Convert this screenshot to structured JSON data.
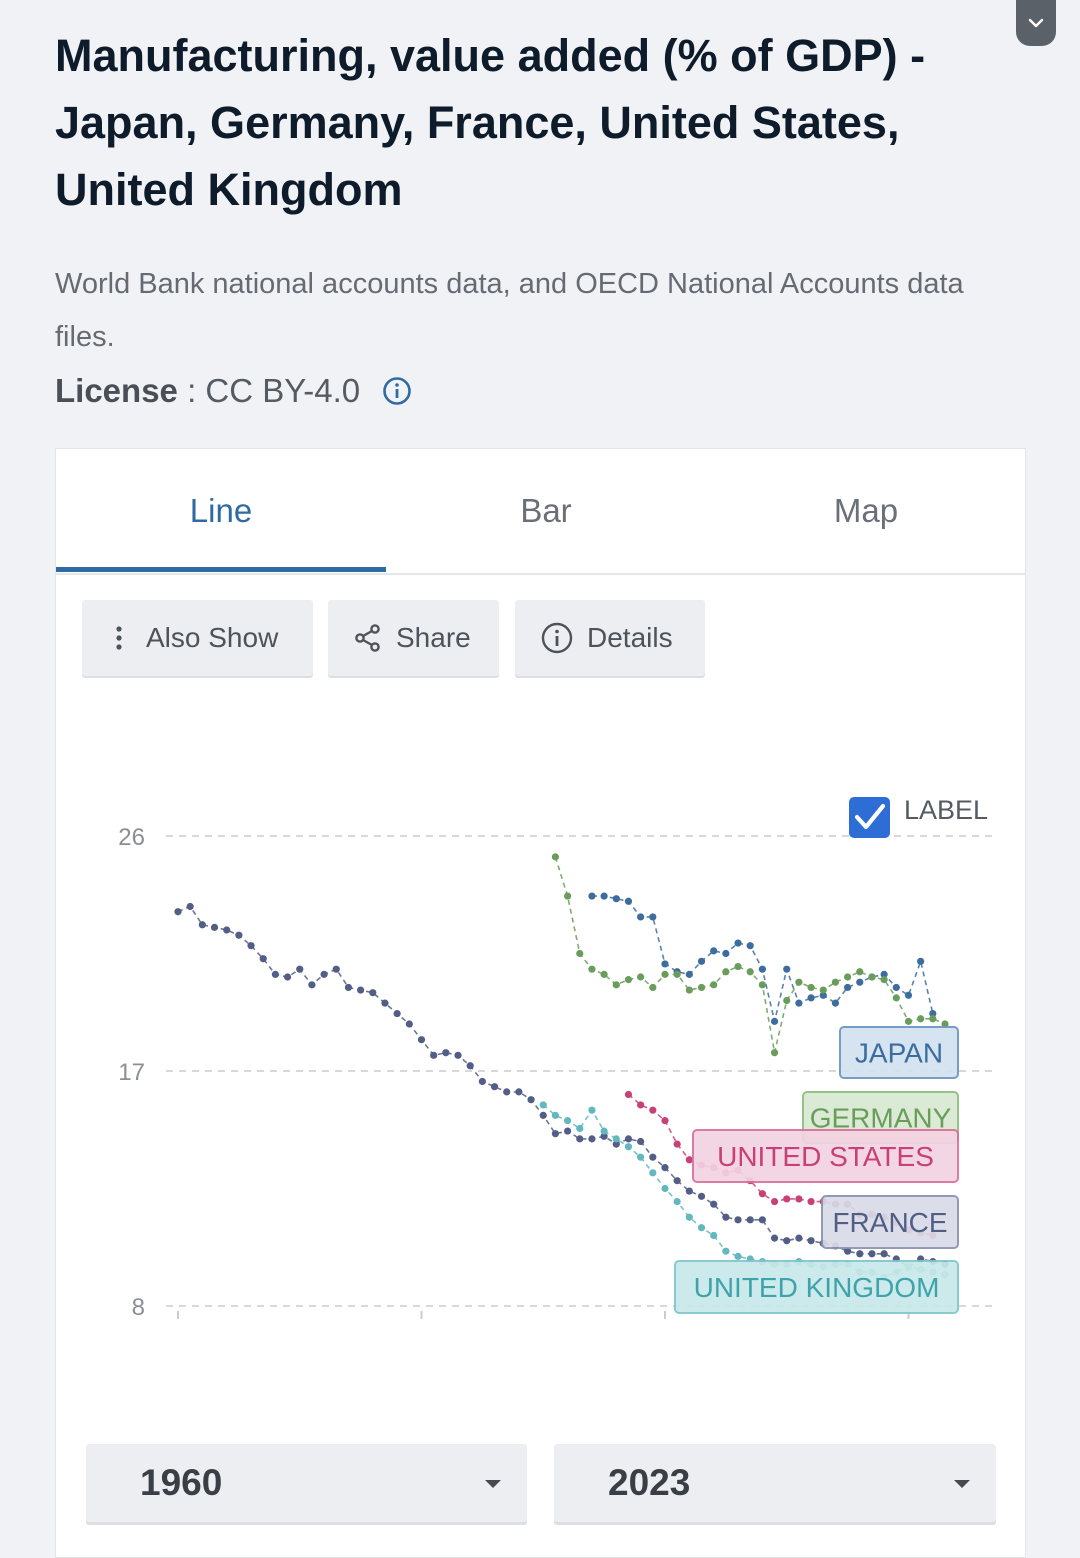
{
  "header": {
    "title": "Manufacturing, value added (% of GDP) - Japan, Germany, France, United States, United Kingdom",
    "source": "World Bank national accounts data, and OECD National Accounts data files.",
    "license_label": "License",
    "license_sep": " : ",
    "license_value": "CC BY-4.0"
  },
  "tabs": [
    {
      "label": "Line",
      "active": true
    },
    {
      "label": "Bar",
      "active": false
    },
    {
      "label": "Map",
      "active": false
    }
  ],
  "toolbar": {
    "also_show": "Also Show",
    "share": "Share",
    "details": "Details"
  },
  "label_toggle": {
    "text": "LABEL",
    "checked": true
  },
  "range": {
    "start": "1960",
    "end": "2023"
  },
  "icons": {
    "collapse": "chevron-down-icon",
    "license_info": "info-icon",
    "also_show": "vertical-dots-icon",
    "share": "share-icon",
    "details": "info-icon",
    "checkbox": "checkbox-checked-icon",
    "dropdown": "caret-down-icon"
  },
  "colors": {
    "accent": "#2f6aa3",
    "japan": "#3c6d9e",
    "germany": "#6a9d5b",
    "united_states": "#c93f78",
    "france": "#525e85",
    "united_kingdom": "#63b7be"
  },
  "chart_data": {
    "type": "line",
    "title": "",
    "xlabel": "",
    "ylabel": "",
    "xlim": [
      1960,
      2023
    ],
    "ylim": [
      8,
      26
    ],
    "yticks": [
      8,
      17,
      26
    ],
    "grid": true,
    "legend": "end-of-line labels",
    "series": [
      {
        "name": "JAPAN",
        "color": "#3c6d9e",
        "x": [
          1994,
          1995,
          1996,
          1997,
          1998,
          1999,
          2000,
          2001,
          2002,
          2003,
          2004,
          2005,
          2006,
          2007,
          2008,
          2009,
          2010,
          2011,
          2012,
          2013,
          2014,
          2015,
          2016,
          2017,
          2018,
          2019,
          2020,
          2021,
          2022
        ],
        "values": [
          23.7,
          23.7,
          23.6,
          23.5,
          22.9,
          22.9,
          21.1,
          20.8,
          20.7,
          21.2,
          21.6,
          21.5,
          21.9,
          21.8,
          20.9,
          18.9,
          20.9,
          19.6,
          19.8,
          19.9,
          19.6,
          20.2,
          20.4,
          20.6,
          20.7,
          20.2,
          19.9,
          21.2,
          19.2
        ]
      },
      {
        "name": "GERMANY",
        "color": "#6a9d5b",
        "x": [
          1991,
          1992,
          1993,
          1994,
          1995,
          1996,
          1997,
          1998,
          1999,
          2000,
          2001,
          2002,
          2003,
          2004,
          2005,
          2006,
          2007,
          2008,
          2009,
          2010,
          2011,
          2012,
          2013,
          2014,
          2015,
          2016,
          2017,
          2018,
          2019,
          2020,
          2021,
          2022,
          2023
        ],
        "values": [
          25.2,
          23.7,
          21.5,
          20.9,
          20.7,
          20.3,
          20.5,
          20.6,
          20.2,
          20.7,
          20.7,
          20.1,
          20.2,
          20.3,
          20.8,
          21.0,
          20.8,
          20.3,
          17.7,
          19.7,
          20.4,
          20.2,
          20.1,
          20.4,
          20.6,
          20.8,
          20.6,
          20.5,
          19.8,
          18.9,
          19.0,
          19.0,
          18.8
        ]
      },
      {
        "name": "UNITED STATES",
        "color": "#c93f78",
        "x": [
          1997,
          1998,
          1999,
          2000,
          2001,
          2002,
          2003,
          2004,
          2005,
          2006,
          2007,
          2008,
          2009,
          2010,
          2011,
          2012,
          2013,
          2014,
          2015,
          2016,
          2017,
          2018,
          2019,
          2020,
          2021,
          2022
        ],
        "values": [
          16.1,
          15.7,
          15.5,
          15.1,
          14.2,
          13.6,
          13.4,
          13.3,
          13.1,
          13.2,
          12.8,
          12.3,
          12.0,
          12.1,
          12.1,
          12.0,
          12.0,
          11.9,
          11.9,
          11.5,
          11.5,
          11.4,
          11.2,
          10.9,
          10.8,
          10.7
        ]
      },
      {
        "name": "FRANCE",
        "color": "#525e85",
        "x": [
          1960,
          1961,
          1962,
          1963,
          1964,
          1965,
          1966,
          1967,
          1968,
          1969,
          1970,
          1971,
          1972,
          1973,
          1974,
          1975,
          1976,
          1977,
          1978,
          1979,
          1980,
          1981,
          1982,
          1983,
          1984,
          1985,
          1986,
          1987,
          1988,
          1989,
          1990,
          1991,
          1992,
          1993,
          1994,
          1995,
          1996,
          1997,
          1998,
          1999,
          2000,
          2001,
          2002,
          2003,
          2004,
          2005,
          2006,
          2007,
          2008,
          2009,
          2010,
          2011,
          2012,
          2013,
          2014,
          2015,
          2016,
          2017,
          2018,
          2019,
          2020,
          2021,
          2022,
          2023
        ],
        "values": [
          23.1,
          23.3,
          22.6,
          22.5,
          22.4,
          22.2,
          21.8,
          21.3,
          20.7,
          20.6,
          20.9,
          20.3,
          20.7,
          20.9,
          20.2,
          20.1,
          20.0,
          19.6,
          19.2,
          18.8,
          18.2,
          17.6,
          17.7,
          17.6,
          17.2,
          16.6,
          16.4,
          16.2,
          16.2,
          15.9,
          15.3,
          14.6,
          14.7,
          14.4,
          14.4,
          14.5,
          14.2,
          14.4,
          14.3,
          13.7,
          13.3,
          12.8,
          12.4,
          12.2,
          11.9,
          11.4,
          11.3,
          11.3,
          11.3,
          10.6,
          10.5,
          10.6,
          10.5,
          10.4,
          10.3,
          10.1,
          10.0,
          10.0,
          10.0,
          9.8,
          9.5,
          9.8,
          9.7,
          9.6
        ]
      },
      {
        "name": "UNITED KINGDOM",
        "color": "#63b7be",
        "x": [
          1990,
          1991,
          1992,
          1993,
          1994,
          1995,
          1996,
          1997,
          1998,
          1999,
          2000,
          2001,
          2002,
          2003,
          2004,
          2005,
          2006,
          2007,
          2008,
          2009,
          2010,
          2011,
          2012,
          2013,
          2014,
          2015,
          2016,
          2017,
          2018,
          2019,
          2020,
          2021,
          2022,
          2023
        ],
        "values": [
          15.7,
          15.3,
          15.1,
          14.8,
          15.5,
          14.7,
          14.4,
          14.1,
          13.7,
          13.1,
          12.5,
          12.0,
          11.4,
          11.0,
          10.7,
          10.1,
          9.9,
          9.8,
          9.7,
          9.6,
          9.6,
          9.7,
          9.6,
          9.5,
          9.6,
          9.6,
          9.3,
          9.3,
          9.1,
          9.3,
          9.5,
          9.4,
          9.3,
          9.2
        ]
      }
    ],
    "end_labels": [
      "JAPAN",
      "GERMANY",
      "UNITED STATES",
      "FRANCE",
      "UNITED KINGDOM"
    ]
  }
}
